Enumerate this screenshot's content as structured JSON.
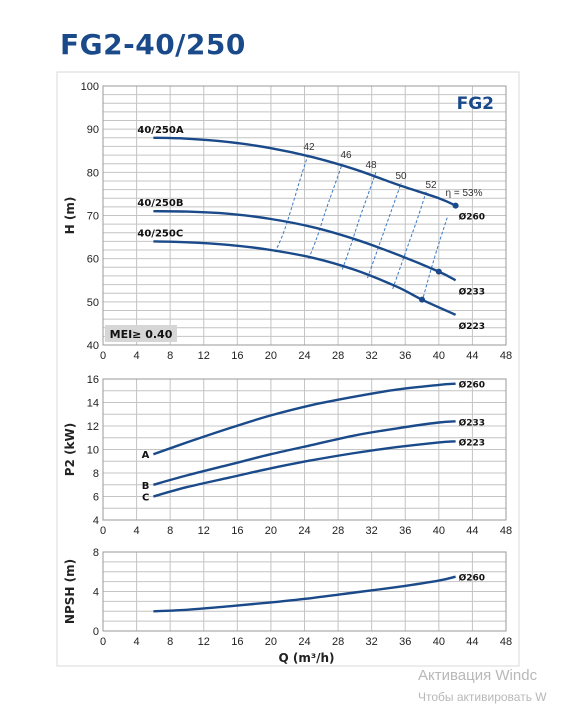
{
  "title": "FG2-40/250",
  "watermark": {
    "line1": "Активация Windc",
    "line2": "Чтобы активировать W"
  },
  "colors": {
    "curve": "#1a4a8a",
    "eff": "#3a78c8",
    "grid": "#c4c4c4",
    "box": "#d8d8d8"
  },
  "chart_data": [
    {
      "type": "line",
      "title": "",
      "badge": "FG2",
      "mei_label": "MEI≥ 0.40",
      "ylabel": "H (m)",
      "xlim": [
        0,
        48
      ],
      "ylim": [
        40,
        100
      ],
      "x_ticks": [
        "0",
        "4",
        "8",
        "12",
        "16",
        "20",
        "24",
        "28",
        "32",
        "36",
        "40",
        "44",
        "48"
      ],
      "y_ticks": [
        "40",
        "50",
        "60",
        "70",
        "80",
        "90",
        "100"
      ],
      "grid": true,
      "series": [
        {
          "name": "40/250A",
          "x": [
            6,
            10,
            15,
            20,
            25,
            30,
            35,
            40,
            42
          ],
          "y": [
            88,
            87.8,
            87,
            85.6,
            83.5,
            80.7,
            77.2,
            74,
            72.3
          ]
        },
        {
          "name": "40/250B",
          "x": [
            6,
            10,
            15,
            20,
            25,
            30,
            35,
            40,
            42
          ],
          "y": [
            71,
            70.9,
            70.4,
            69.2,
            67.3,
            64.5,
            61,
            57,
            55
          ]
        },
        {
          "name": "40/250C",
          "x": [
            6,
            10,
            15,
            20,
            25,
            30,
            35,
            38,
            42
          ],
          "y": [
            64,
            63.8,
            63.2,
            62,
            60.2,
            57.4,
            53.5,
            50.5,
            47
          ]
        }
      ],
      "end_labels": [
        "Ø260",
        "Ø233",
        "Ø223"
      ],
      "efficiency_labels": [
        "42",
        "46",
        "48",
        "50",
        "52",
        "η = 53%"
      ],
      "efficiency_lines": [
        {
          "x": [
            20.5,
            21.5,
            22.5,
            23.5,
            24.5
          ],
          "y": [
            61.5,
            66,
            72,
            78.5,
            84.5
          ]
        },
        {
          "x": [
            24.5,
            25.5,
            26.5,
            27.5,
            28.5
          ],
          "y": [
            60,
            65,
            71,
            76.5,
            82
          ]
        },
        {
          "x": [
            28.5,
            29.5,
            30.5,
            31.5,
            32.5
          ],
          "y": [
            57.5,
            63,
            69,
            74.5,
            80
          ]
        },
        {
          "x": [
            31.5,
            32.5,
            33.5,
            34.5,
            35.5
          ],
          "y": [
            55.5,
            61,
            66.5,
            72,
            77.5
          ]
        },
        {
          "x": [
            34.5,
            35.5,
            36.5,
            37.5,
            38.5
          ],
          "y": [
            53,
            58.5,
            64,
            69.5,
            75.5
          ]
        },
        {
          "x": [
            38,
            39,
            40,
            41
          ],
          "y": [
            50,
            57,
            63.5,
            69.5
          ]
        }
      ],
      "markers": [
        {
          "x": 42,
          "y": 72.3
        },
        {
          "x": 40,
          "y": 57
        },
        {
          "x": 38,
          "y": 50.5
        }
      ]
    },
    {
      "type": "line",
      "title": "",
      "ylabel": "P2 (kW)",
      "xlim": [
        0,
        48
      ],
      "ylim": [
        4,
        16
      ],
      "x_ticks": [
        "0",
        "4",
        "8",
        "12",
        "16",
        "20",
        "24",
        "28",
        "32",
        "36",
        "40",
        "44",
        "48"
      ],
      "y_ticks": [
        "4",
        "6",
        "8",
        "10",
        "12",
        "14",
        "16"
      ],
      "grid": true,
      "series": [
        {
          "name": "A",
          "x": [
            6,
            10,
            15,
            20,
            25,
            30,
            35,
            40,
            42
          ],
          "y": [
            9.6,
            10.6,
            11.8,
            12.9,
            13.8,
            14.5,
            15.1,
            15.5,
            15.6
          ]
        },
        {
          "name": "B",
          "x": [
            6,
            10,
            15,
            20,
            25,
            30,
            35,
            40,
            42
          ],
          "y": [
            7,
            7.8,
            8.7,
            9.6,
            10.4,
            11.2,
            11.8,
            12.3,
            12.4
          ]
        },
        {
          "name": "C",
          "x": [
            6,
            10,
            15,
            20,
            25,
            30,
            35,
            40,
            42
          ],
          "y": [
            6,
            6.8,
            7.6,
            8.4,
            9.1,
            9.7,
            10.2,
            10.6,
            10.7
          ]
        }
      ],
      "end_labels": [
        "Ø260",
        "Ø233",
        "Ø223"
      ]
    },
    {
      "type": "line",
      "title": "",
      "ylabel": "NPSH (m)",
      "xlabel": "Q (m³/h)",
      "xlim": [
        0,
        48
      ],
      "ylim": [
        0,
        8
      ],
      "x_ticks": [
        "0",
        "4",
        "8",
        "12",
        "16",
        "20",
        "24",
        "28",
        "32",
        "36",
        "40",
        "44",
        "48"
      ],
      "y_ticks": [
        "0",
        "4",
        "8"
      ],
      "grid": true,
      "series": [
        {
          "name": "",
          "x": [
            6,
            10,
            15,
            20,
            25,
            30,
            35,
            40,
            42
          ],
          "y": [
            2,
            2.15,
            2.5,
            2.9,
            3.35,
            3.9,
            4.45,
            5.1,
            5.5
          ]
        }
      ],
      "end_labels": [
        "Ø260"
      ]
    }
  ]
}
